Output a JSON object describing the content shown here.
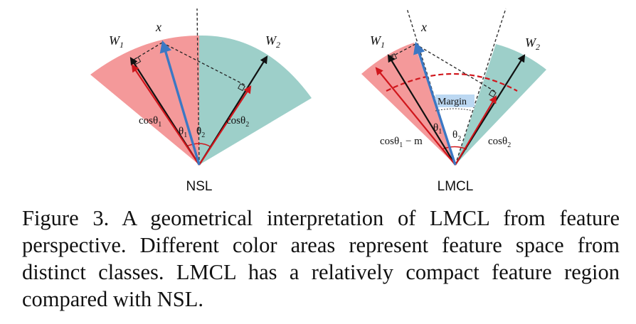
{
  "figure": {
    "left": {
      "title": "NSL",
      "w1": "W",
      "w1_sub": "1",
      "w2": "W",
      "w2_sub": "2",
      "x": "x",
      "cos1": "cosθ",
      "cos1_sub": "1",
      "cos2": "cosθ",
      "cos2_sub": "2",
      "theta1": "θ",
      "theta1_sub": "1",
      "theta2": "θ",
      "theta2_sub": "2"
    },
    "right": {
      "title": "LMCL",
      "w1": "W",
      "w1_sub": "1",
      "w2": "W",
      "w2_sub": "2",
      "x": "x",
      "cos1": "cosθ",
      "cos1_sub": "1",
      "cos1_suffix": " − m",
      "cos2": "cosθ",
      "cos2_sub": "2",
      "theta1": "θ",
      "theta1_sub": "1",
      "theta2": "θ",
      "theta2_sub": "2",
      "margin": "Margin"
    },
    "colors": {
      "class1_region": "#f4999a",
      "class2_region": "#9dcfc9",
      "feature_vector": "#3b78c4",
      "projection": "#d0161c",
      "margin_highlight": "#bcd8f2"
    }
  },
  "caption": "Figure 3. A geometrical interpretation of LMCL from feature perspective. Different color areas represent feature space from distinct classes. LMCL has a relatively compact feature region compared with NSL."
}
